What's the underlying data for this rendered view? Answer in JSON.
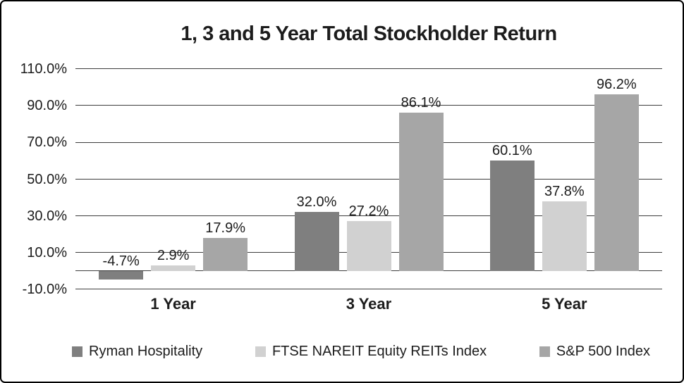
{
  "frame": {
    "background_color": "#ffffff",
    "border_color": "#000000"
  },
  "title": "1, 3 and 5 Year Total Stockholder Return",
  "chart_data": {
    "type": "bar",
    "title": "1, 3 and 5 Year Total Stockholder Return",
    "categories": [
      "1 Year",
      "3 Year",
      "5 Year"
    ],
    "series": [
      {
        "name": "Ryman Hospitality",
        "color": "#7f7f7f",
        "values": [
          -4.7,
          32.0,
          60.1
        ],
        "value_labels": [
          "-4.7%",
          "32.0%",
          "60.1%"
        ]
      },
      {
        "name": "FTSE NAREIT Equity REITs Index",
        "color": "#d1d1d1",
        "values": [
          2.9,
          27.2,
          37.8
        ],
        "value_labels": [
          "2.9%",
          "27.2%",
          "37.8%"
        ]
      },
      {
        "name": "S&P 500 Index",
        "color": "#a6a6a6",
        "values": [
          17.9,
          86.1,
          96.2
        ],
        "value_labels": [
          "17.9%",
          "86.1%",
          "96.2%"
        ]
      }
    ],
    "y_axis": {
      "min": -10,
      "max": 110,
      "step": 20,
      "tick_labels": [
        "110.0%",
        "90.0%",
        "70.0%",
        "50.0%",
        "30.0%",
        "10.0%",
        "-10.0%"
      ],
      "grid": true
    },
    "legend_position": "bottom",
    "text_color": "#1c1c1c",
    "grid_color": "#3d3d3d"
  }
}
